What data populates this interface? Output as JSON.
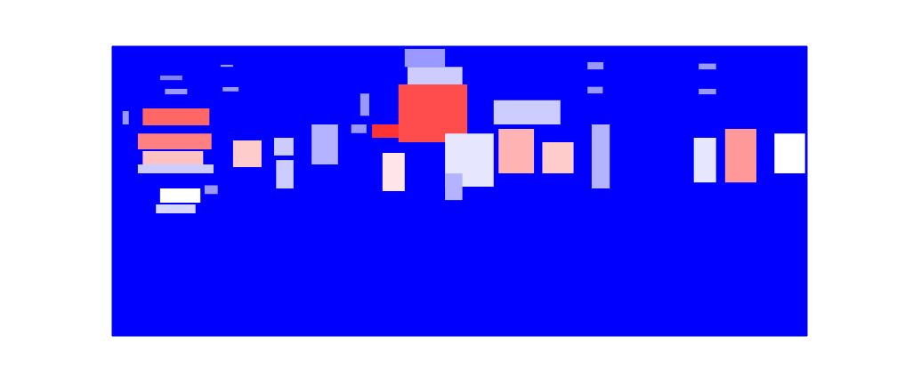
{
  "chart_data": {
    "type": "heatmap",
    "xlim": [
      0,
      100
    ],
    "ylim": [
      0,
      100
    ],
    "tick_labels": false,
    "color_range": [
      0,
      1
    ],
    "cells": [
      [
        4.4,
        14.0,
        72.7,
        78.5,
        0.8
      ],
      [
        3.7,
        14.3,
        64.4,
        69.9,
        0.75
      ],
      [
        4.4,
        13.1,
        58.3,
        63.8,
        0.62
      ],
      [
        3.7,
        14.6,
        56.1,
        59.2,
        0.4
      ],
      [
        6.9,
        12.7,
        46.0,
        50.9,
        0.5
      ],
      [
        6.3,
        12.0,
        42.3,
        45.4,
        0.42
      ],
      [
        7.6,
        10.8,
        83.4,
        85.3,
        0.3
      ],
      [
        6.9,
        10.1,
        88.3,
        89.9,
        0.25
      ],
      [
        1.5,
        2.4,
        73.0,
        77.6,
        0.3
      ],
      [
        13.3,
        15.2,
        49.0,
        52.0,
        0.3
      ],
      [
        15.6,
        17.4,
        92.9,
        93.6,
        0.3
      ],
      [
        15.9,
        18.2,
        84.4,
        85.9,
        0.3
      ],
      [
        17.4,
        21.5,
        58.3,
        67.5,
        0.6
      ],
      [
        23.3,
        26.1,
        62.3,
        68.4,
        0.4
      ],
      [
        23.6,
        26.1,
        50.9,
        60.7,
        0.4
      ],
      [
        28.7,
        32.5,
        59.2,
        73.0,
        0.35
      ],
      [
        34.4,
        36.6,
        70.0,
        73.0,
        0.3
      ],
      [
        35.7,
        37.0,
        76.0,
        83.7,
        0.3
      ],
      [
        37.4,
        42.1,
        68.4,
        73.0,
        0.9
      ],
      [
        38.9,
        42.1,
        50.0,
        63.2,
        0.55
      ],
      [
        41.2,
        51.1,
        66.9,
        86.8,
        0.85
      ],
      [
        42.1,
        47.9,
        92.9,
        99.1,
        0.3
      ],
      [
        42.5,
        50.4,
        86.8,
        92.9,
        0.4
      ],
      [
        47.9,
        54.9,
        51.5,
        69.9,
        0.45
      ],
      [
        47.9,
        50.4,
        46.9,
        56.1,
        0.35
      ],
      [
        54.9,
        64.5,
        73.0,
        81.4,
        0.4
      ],
      [
        55.6,
        60.7,
        56.1,
        71.5,
        0.65
      ],
      [
        61.9,
        66.4,
        56.1,
        66.9,
        0.6
      ],
      [
        68.4,
        70.7,
        92.0,
        94.5,
        0.3
      ],
      [
        68.4,
        70.6,
        83.7,
        86.0,
        0.3
      ],
      [
        69.0,
        71.6,
        50.9,
        73.0,
        0.35
      ],
      [
        84.4,
        86.9,
        92.0,
        94.0,
        0.3
      ],
      [
        84.4,
        86.9,
        83.4,
        85.3,
        0.3
      ],
      [
        83.7,
        86.9,
        53.0,
        68.4,
        0.45
      ],
      [
        88.2,
        92.7,
        53.0,
        71.5,
        0.7
      ],
      [
        95.3,
        99.7,
        56.1,
        69.9,
        0.5
      ]
    ]
  }
}
